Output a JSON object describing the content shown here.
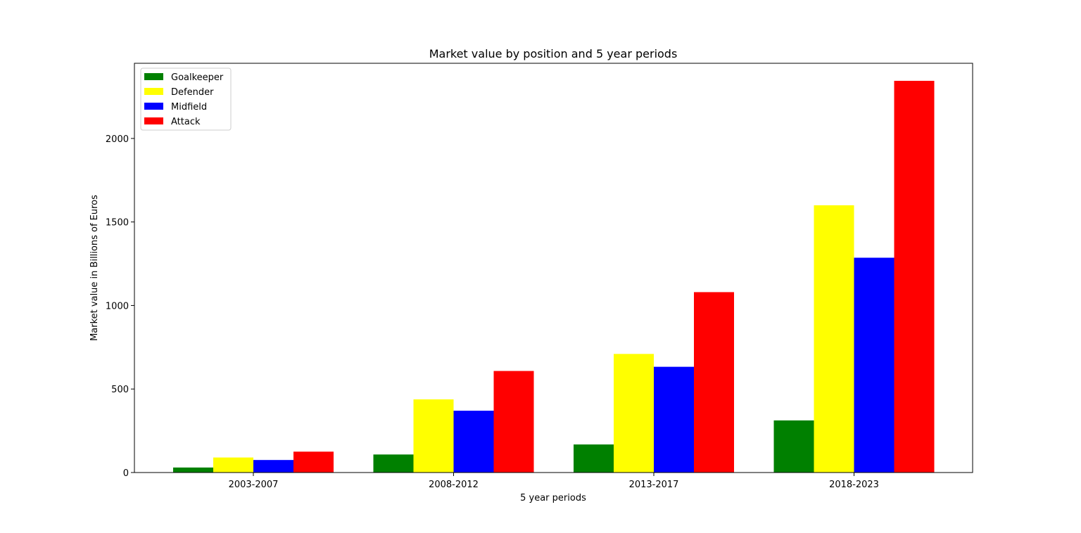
{
  "chart_data": {
    "type": "bar",
    "title": "Market value by position and 5 year periods",
    "xlabel": "5 year periods",
    "ylabel": "Market value in Billions of Euros",
    "categories": [
      "2003-2007",
      "2008-2012",
      "2013-2017",
      "2018-2023"
    ],
    "ylim": [
      0,
      2450
    ],
    "yticks": [
      0,
      500,
      1000,
      1500,
      2000
    ],
    "grid": false,
    "legend_position": "top-left",
    "series": [
      {
        "name": "Goalkeeper",
        "color": "#008000",
        "values": [
          30,
          108,
          168,
          312
        ]
      },
      {
        "name": "Defender",
        "color": "#ffff00",
        "values": [
          90,
          438,
          710,
          1600
        ]
      },
      {
        "name": "Midfield",
        "color": "#0000ff",
        "values": [
          75,
          370,
          633,
          1286
        ]
      },
      {
        "name": "Attack",
        "color": "#ff0000",
        "values": [
          125,
          608,
          1080,
          2345
        ]
      }
    ]
  }
}
